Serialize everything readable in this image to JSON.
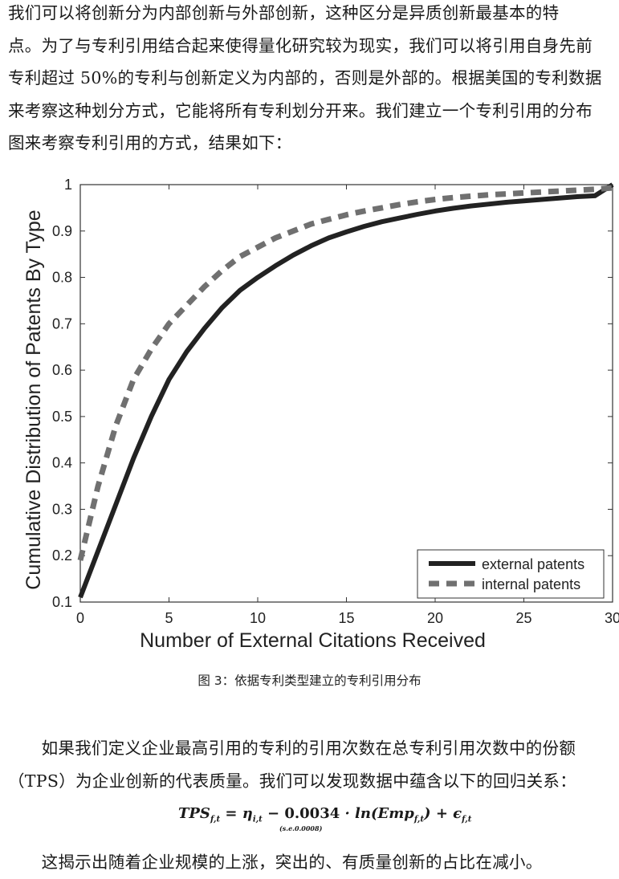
{
  "paragraph1": [
    "我们可以将创新分为内部创新与外部创新，这种区分是异质创新最基本的特",
    "点。为了与专利引用结合起来使得量化研究较为现实，我们可以将引用自身先前",
    "专利超过 50%的专利与创新定义为内部的，否则是外部的。根据美国的专利数据",
    "来考察这种划分方式，它能将所有专利划分开来。我们建立一个专利引用的分布",
    "图来考察专利引用的方式，结果如下："
  ],
  "chart_data": {
    "type": "line",
    "xlabel": "Number of External Citations Received",
    "ylabel": "Cumulative Distribution of Patents By Type",
    "xlim": [
      0,
      30
    ],
    "ylim": [
      0.1,
      1
    ],
    "xticks": [
      "0",
      "5",
      "10",
      "15",
      "20",
      "25",
      "30"
    ],
    "yticks": [
      "0.1",
      "0.2",
      "0.3",
      "0.4",
      "0.5",
      "0.6",
      "0.7",
      "0.8",
      "0.9",
      "1"
    ],
    "grid": false,
    "legend_position": "bottom-right",
    "series": [
      {
        "name": "external patents",
        "style": "solid",
        "color": "#222222",
        "x": [
          0,
          1,
          2,
          3,
          4,
          5,
          6,
          7,
          8,
          9,
          10,
          11,
          12,
          13,
          14,
          15,
          16,
          17,
          18,
          19,
          20,
          21,
          22,
          23,
          24,
          25,
          26,
          27,
          28,
          29,
          30
        ],
        "y": [
          0.11,
          0.21,
          0.31,
          0.41,
          0.5,
          0.58,
          0.64,
          0.69,
          0.735,
          0.772,
          0.8,
          0.825,
          0.848,
          0.868,
          0.885,
          0.898,
          0.91,
          0.92,
          0.928,
          0.936,
          0.943,
          0.949,
          0.954,
          0.958,
          0.962,
          0.965,
          0.968,
          0.971,
          0.974,
          0.976,
          1.0
        ]
      },
      {
        "name": "internal patents",
        "style": "dashed",
        "color": "#707070",
        "x": [
          0,
          1,
          2,
          3,
          4,
          5,
          6,
          7,
          8,
          9,
          10,
          11,
          12,
          13,
          14,
          15,
          16,
          17,
          18,
          19,
          20,
          21,
          22,
          23,
          24,
          25,
          26,
          27,
          28,
          29,
          30
        ],
        "y": [
          0.19,
          0.35,
          0.48,
          0.58,
          0.645,
          0.7,
          0.74,
          0.78,
          0.815,
          0.845,
          0.865,
          0.885,
          0.9,
          0.915,
          0.925,
          0.935,
          0.943,
          0.95,
          0.957,
          0.963,
          0.968,
          0.972,
          0.975,
          0.978,
          0.98,
          0.982,
          0.984,
          0.986,
          0.988,
          0.99,
          0.993
        ]
      }
    ]
  },
  "caption": "图 3：依据专利类型建立的专利引用分布",
  "paragraph2": [
    "　　如果我们定义企业最高引用的专利的引用次数在总专利引用次数中的份额",
    "（TPS）为企业创新的代表质量。我们可以发现数据中蕴含以下的回归关系："
  ],
  "formula": {
    "text": "TPS_{f,t} = η_{i,t} − 0.0034 · ln(Emp_{f,t}) + ε_{f,t}",
    "se": "(s.e.0.0008)"
  },
  "paragraph3": "　　这揭示出随着企业规模的上涨，突出的、有质量创新的占比在减小。"
}
